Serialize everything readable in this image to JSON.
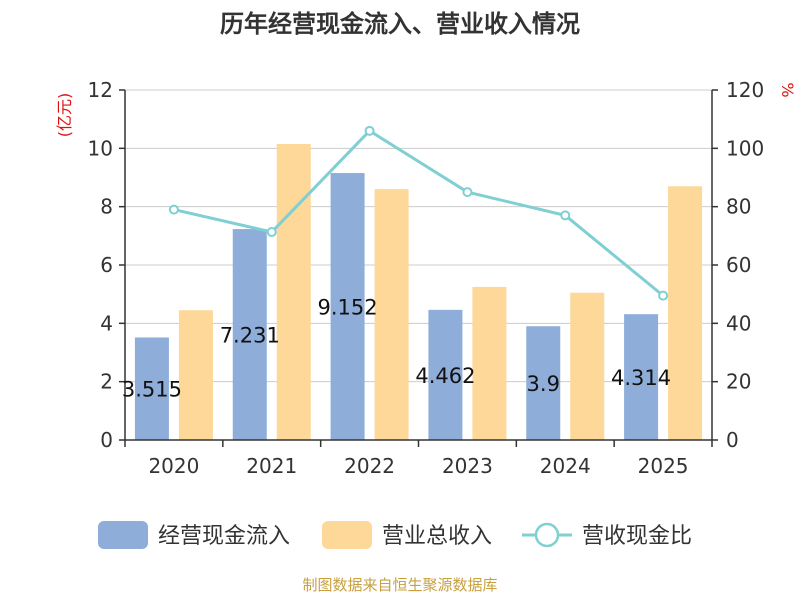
{
  "chart_data": {
    "type": "bar",
    "title": "历年经营现金流入、营业收入情况",
    "categories": [
      "2020",
      "2021",
      "2022",
      "2023",
      "2024",
      "2025"
    ],
    "series": [
      {
        "name": "经营现金流入",
        "type": "bar",
        "axis": "left",
        "color": "#8eadd9",
        "values": [
          3.515,
          7.231,
          9.152,
          4.462,
          3.9,
          4.314
        ],
        "labels": [
          "3.515",
          "7.231",
          "9.152",
          "4.462",
          "3.9",
          "4.314"
        ]
      },
      {
        "name": "营业总收入",
        "type": "bar",
        "axis": "left",
        "color": "#fdd898",
        "values": [
          4.45,
          10.15,
          8.6,
          5.25,
          5.05,
          8.7
        ]
      },
      {
        "name": "营收现金比",
        "type": "line",
        "axis": "right",
        "color": "#7fcfd3",
        "values": [
          79,
          71.3,
          106,
          85,
          77,
          49.5
        ]
      }
    ],
    "y_left": {
      "label": "(亿元)",
      "min": 0,
      "max": 12,
      "ticks": [
        0,
        2,
        4,
        6,
        8,
        10,
        12
      ]
    },
    "y_right": {
      "label": "%",
      "min": 0,
      "max": 120,
      "ticks": [
        0,
        20,
        40,
        60,
        80,
        100,
        120
      ]
    },
    "grid": true,
    "legend": "bottom"
  },
  "footer": "制图数据来自恒生聚源数据库"
}
